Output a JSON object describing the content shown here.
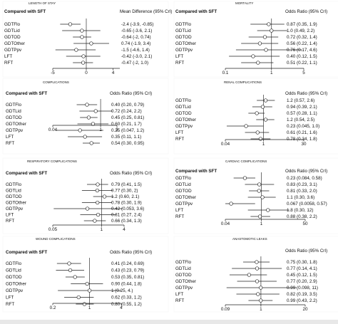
{
  "figure": {
    "panels": [
      {
        "id": "los",
        "title": "LENGTH OF STAY",
        "header_left": "Compared with SFT",
        "header_right": "Mean Difference (95% CrI)",
        "axis": {
          "scale": "linear",
          "min": -5,
          "max": 5,
          "ref": 0
        },
        "ticks": [
          "-5",
          "0",
          "4"
        ],
        "tick_values": [
          -5,
          0,
          4
        ],
        "rows": [
          {
            "label": "GDTFlo",
            "est": -2.4,
            "lo": -3.9,
            "hi": -0.85,
            "text": "-2.4 (-3.9, -0.85)"
          },
          {
            "label": "GDTLid",
            "est": -0.65,
            "lo": -3.6,
            "hi": 2.1,
            "text": "-0.65 (-3.6, 2.1)"
          },
          {
            "label": "GDTOD",
            "est": -0.64,
            "lo": -2,
            "hi": 0.74,
            "text": "-0.64 (-2, 0.74)"
          },
          {
            "label": "GDTOther",
            "est": 0.74,
            "lo": -1.9,
            "hi": 3.4,
            "text": "0.74 (-1.9, 3.4)"
          },
          {
            "label": "GDTPpv",
            "est": -1.5,
            "lo": -4.6,
            "hi": 1.4,
            "text": "-1.5 (-4.6, 1.4)"
          },
          {
            "label": "LFT",
            "est": -0.42,
            "lo": -3,
            "hi": 2.1,
            "text": "-0.42 (-3.0, 2.1)"
          },
          {
            "label": "RFT",
            "est": -0.47,
            "lo": -2,
            "hi": 1,
            "text": "-0.47 (-2, 1.0)"
          }
        ]
      },
      {
        "id": "mortality",
        "title": "MORTALITY",
        "header_left": "Compared with SFT",
        "header_right": "Odds Ratio (95% CrI)",
        "axis": {
          "scale": "log",
          "min": 0.1,
          "max": 5,
          "ref": 1
        },
        "ticks": [
          "0.1",
          "1",
          "5"
        ],
        "tick_values": [
          0.1,
          1,
          5
        ],
        "rows": [
          {
            "label": "GDTFlo",
            "est": 0.87,
            "lo": 0.35,
            "hi": 1.9,
            "text": "0.87 (0.35, 1.9)"
          },
          {
            "label": "GDTLid",
            "est": 1,
            "lo": 0.49,
            "hi": 2.2,
            "text": "1.0 (0.49, 2.2)"
          },
          {
            "label": "GDTOD",
            "est": 0.72,
            "lo": 0.32,
            "hi": 1.4,
            "text": "0.72 (0.32, 1.4)"
          },
          {
            "label": "GDTOther",
            "est": 0.56,
            "lo": 0.22,
            "hi": 1.4,
            "text": "0.56 (0.22, 1.4)"
          },
          {
            "label": "GDTPpv",
            "est": 0.76,
            "lo": 0.17,
            "hi": 4.6,
            "text": "0.76 (0.17, 4.6)"
          },
          {
            "label": "LFT",
            "est": 0.4,
            "lo": 0.12,
            "hi": 1.5,
            "text": "0.40 (0.12, 1.5)"
          },
          {
            "label": "RFT",
            "est": 0.51,
            "lo": 0.22,
            "hi": 1.1,
            "text": "0.51 (0.22, 1.1)"
          }
        ]
      },
      {
        "id": "complications",
        "title": "COMPLICATIONS",
        "header_left": "Compared with SFT",
        "header_right": "Odds Ratio (95% CrI)",
        "axis": {
          "scale": "log",
          "min": 0.04,
          "max": 3,
          "ref": 1
        },
        "ticks": [
          "0.04",
          "1",
          "3"
        ],
        "tick_values": [
          0.04,
          1,
          3
        ],
        "rows": [
          {
            "label": "GDTFlo",
            "est": 0.4,
            "lo": 0.2,
            "hi": 0.79,
            "text": "0.40 (0.20, 0.79)"
          },
          {
            "label": "GDTLid",
            "est": 0.72,
            "lo": 0.24,
            "hi": 2.2,
            "text": "0.72 (0.24, 2.2)"
          },
          {
            "label": "GDTOD",
            "est": 0.45,
            "lo": 0.25,
            "hi": 0.81,
            "text": "0.45 (0.25, 0.81)"
          },
          {
            "label": "GDTOther",
            "est": 0.6,
            "lo": 0.21,
            "hi": 1.7,
            "text": "0.60 (0.21, 1.7)"
          },
          {
            "label": "GDTPpv",
            "est": 0.25,
            "lo": 0.047,
            "hi": 1.2,
            "text": "0.25 (0.047, 1.2)"
          },
          {
            "label": "LFT",
            "est": 0.35,
            "lo": 0.11,
            "hi": 1.1,
            "text": "0.35 (0.11, 1.1)"
          },
          {
            "label": "RFT",
            "est": 0.54,
            "lo": 0.3,
            "hi": 0.95,
            "text": "0.54 (0.30, 0.95)"
          }
        ]
      },
      {
        "id": "renal",
        "title": "RENAL COMPLICATIONS",
        "header_left": "",
        "header_right": "Odds Ratio (95% CrI)",
        "axis": {
          "scale": "log",
          "min": 0.04,
          "max": 30,
          "ref": 1
        },
        "ticks": [
          "0.04",
          "1",
          "30"
        ],
        "tick_values": [
          0.04,
          1,
          30
        ],
        "rows": [
          {
            "label": "GDTFlo",
            "est": 1.2,
            "lo": 0.57,
            "hi": 2.6,
            "text": "1.2 (0.57, 2.6)"
          },
          {
            "label": "GDTLid",
            "est": 0.94,
            "lo": 0.39,
            "hi": 2.1,
            "text": "0.94 (0.39, 2.1)"
          },
          {
            "label": "GDTOD",
            "est": 0.57,
            "lo": 0.28,
            "hi": 1.1,
            "text": "0.57 (0.28, 1.1)"
          },
          {
            "label": "GDTOther",
            "est": 1.2,
            "lo": 0.54,
            "hi": 2.5,
            "text": "1.2 (0.54, 2.5)"
          },
          {
            "label": "GDTPpv",
            "est": 0.23,
            "lo": 0.045,
            "hi": 1,
            "text": "0.23 (0.045, 1.0)"
          },
          {
            "label": "LFT",
            "est": 0.61,
            "lo": 0.21,
            "hi": 1.6,
            "text": "0.61 (0.21, 1.6)"
          },
          {
            "label": "RFT",
            "est": 0.78,
            "lo": 0.34,
            "hi": 1.8,
            "text": "0.78 (0.34, 1.8)"
          }
        ]
      },
      {
        "id": "respiratory",
        "title": "RESPIRATORY COMPLICATIONS",
        "header_left": "Compared with SFT",
        "header_right": "Odds Ratio (95% CrI)",
        "axis": {
          "scale": "log",
          "min": 0.05,
          "max": 4,
          "ref": 1
        },
        "ticks": [
          "0.05",
          "1",
          "4"
        ],
        "tick_values": [
          0.05,
          1,
          4
        ],
        "rows": [
          {
            "label": "GDTFlo",
            "est": 0.79,
            "lo": 0.41,
            "hi": 1.5,
            "text": "0.79 (0.41, 1.5)"
          },
          {
            "label": "GDTLid",
            "est": 0.77,
            "lo": 0.3,
            "hi": 2,
            "text": "0.77 (0.30, 2)"
          },
          {
            "label": "GDTOD",
            "est": 1.2,
            "lo": 0.6,
            "hi": 2.1,
            "text": "1.2 (0.60, 2.1)"
          },
          {
            "label": "GDTOther",
            "est": 0.78,
            "lo": 0.3,
            "hi": 1.9,
            "text": "0.78 (0.30, 1.9)"
          },
          {
            "label": "GDTPpv",
            "est": 0.42,
            "lo": 0.053,
            "hi": 3.6,
            "text": "0.42 (0.053, 3.6)"
          },
          {
            "label": "LFT",
            "est": 0.81,
            "lo": 0.27,
            "hi": 2.4,
            "text": "0.81 (0.27, 2.4)"
          },
          {
            "label": "RFT",
            "est": 0.66,
            "lo": 0.34,
            "hi": 1.3,
            "text": "0.66 (0.34, 1.3)"
          }
        ]
      },
      {
        "id": "cardiac",
        "title": "CARDIAC COMPLICATIONS",
        "header_left": "Compared with SFT",
        "header_right": "Odds Ratio (95% CrI)",
        "axis": {
          "scale": "log",
          "min": 0.04,
          "max": 50,
          "ref": 1
        },
        "ticks": [
          "0.04",
          "1",
          "50"
        ],
        "tick_values": [
          0.04,
          1,
          50
        ],
        "rows": [
          {
            "label": "GDTFlo",
            "est": 0.23,
            "lo": 0.084,
            "hi": 0.58,
            "text": "0.23 (0.084, 0.58)"
          },
          {
            "label": "GDTLid",
            "est": 0.83,
            "lo": 0.23,
            "hi": 3.1,
            "text": "0.83 (0.23, 3.1)"
          },
          {
            "label": "GDTOD",
            "est": 0.81,
            "lo": 0.33,
            "hi": 2,
            "text": "0.81 (0.33, 2.0)"
          },
          {
            "label": "GDTOther",
            "est": 1.1,
            "lo": 0.3,
            "hi": 3.6,
            "text": "1.1 (0.30, 3.6)"
          },
          {
            "label": "GDTPpv",
            "est": 0.067,
            "lo": 0.0058,
            "hi": 0.57,
            "text": "0.067 (0.0058, 0.57)"
          },
          {
            "label": "LFT",
            "est": 1.8,
            "lo": 0.3,
            "hi": 12,
            "text": "1.8 (0.30, 12)"
          },
          {
            "label": "RFT",
            "est": 0.88,
            "lo": 0.38,
            "hi": 2.2,
            "text": "0.88 (0.38, 2.2)"
          }
        ]
      },
      {
        "id": "wound",
        "title": "WOUND COMPLICATIONS",
        "header_left": "Compared with SFT",
        "header_right": "Odds Ratio (95% CrI)",
        "axis": {
          "scale": "log",
          "min": 0.2,
          "max": 4,
          "ref": 1
        },
        "ticks": [
          "0.2",
          "1",
          "4"
        ],
        "tick_values": [
          0.2,
          1,
          4
        ],
        "rows": [
          {
            "label": "GDTFlo",
            "est": 0.41,
            "lo": 0.24,
            "hi": 0.69,
            "text": "0.41 (0.24, 0.69)"
          },
          {
            "label": "GDTLid",
            "est": 0.43,
            "lo": 0.23,
            "hi": 0.79,
            "text": "0.43 (0.23, 0.79)"
          },
          {
            "label": "GDTOD",
            "est": 0.53,
            "lo": 0.35,
            "hi": 0.81,
            "text": "0.53 (0.35, 0.81)"
          },
          {
            "label": "GDTOther",
            "est": 0.9,
            "lo": 0.44,
            "hi": 1.8,
            "text": "0.90 (0.44, 1.8)"
          },
          {
            "label": "GDTPpv",
            "est": 1,
            "lo": 0.25,
            "hi": 4,
            "text": "1 (0.25, 4.)"
          },
          {
            "label": "LFT",
            "est": 0.62,
            "lo": 0.33,
            "hi": 1.2,
            "text": "0.62 (0.33, 1.2)"
          },
          {
            "label": "RFT",
            "est": 0.8,
            "lo": 0.55,
            "hi": 1.2,
            "text": "0.80 (0.55, 1.2)"
          }
        ]
      },
      {
        "id": "anastomotic",
        "title": "ANASTOMOTIC LEAKS",
        "header_left": "",
        "header_right": "Odds Ratio (95% CrI)",
        "axis": {
          "scale": "log",
          "min": 0.09,
          "max": 20,
          "ref": 1
        },
        "ticks": [
          "0.09",
          "1",
          "20"
        ],
        "tick_values": [
          0.09,
          1,
          20
        ],
        "rows": [
          {
            "label": "GDTFlo",
            "est": 0.75,
            "lo": 0.3,
            "hi": 1.8,
            "text": "0.75 (0.30, 1.8)"
          },
          {
            "label": "GDTLid",
            "est": 0.77,
            "lo": 0.14,
            "hi": 4.1,
            "text": "0.77 (0.14, 4.1)"
          },
          {
            "label": "GDTOD",
            "est": 0.45,
            "lo": 0.12,
            "hi": 1.5,
            "text": "0.45 (0.12, 1.5)"
          },
          {
            "label": "GDTOther",
            "est": 0.77,
            "lo": 0.2,
            "hi": 2.9,
            "text": "0.77 (0.20, 2.9)"
          },
          {
            "label": "GDTPpv",
            "est": 0.99,
            "lo": 0.098,
            "hi": 11,
            "text": "0.99 (0.098, 11)"
          },
          {
            "label": "LFT",
            "est": 0.82,
            "lo": 0.19,
            "hi": 3.5,
            "text": "0.82 (0.19, 3.5)"
          },
          {
            "label": "RFT",
            "est": 0.99,
            "lo": 0.43,
            "hi": 2.2,
            "text": "0.99 (0.43, 2.2)"
          }
        ]
      }
    ]
  },
  "chart_data": [
    {
      "type": "forest",
      "title": "LENGTH OF STAY",
      "categories": [
        "GDTFlo",
        "GDTLid",
        "GDTOD",
        "GDTOther",
        "GDTPpv",
        "LFT",
        "RFT"
      ],
      "values": [
        -2.4,
        -0.65,
        -0.64,
        0.74,
        -1.5,
        -0.42,
        -0.47
      ],
      "lower": [
        -3.9,
        -3.6,
        -2,
        -1.9,
        -4.6,
        -3,
        -2
      ],
      "upper": [
        -0.85,
        2.1,
        0.74,
        3.4,
        1.4,
        2.1,
        1
      ],
      "xlabel": "Mean Difference (95% CrI)",
      "xticks": [
        -5,
        0,
        4
      ],
      "reference": 0
    },
    {
      "type": "forest",
      "title": "MORTALITY",
      "categories": [
        "GDTFlo",
        "GDTLid",
        "GDTOD",
        "GDTOther",
        "GDTPpv",
        "LFT",
        "RFT"
      ],
      "values": [
        0.87,
        1,
        0.72,
        0.56,
        0.76,
        0.4,
        0.51
      ],
      "lower": [
        0.35,
        0.49,
        0.32,
        0.22,
        0.17,
        0.12,
        0.22
      ],
      "upper": [
        1.9,
        2.2,
        1.4,
        1.4,
        4.6,
        1.5,
        1.1
      ],
      "xlabel": "Odds Ratio (95% CrI)",
      "xscale": "log",
      "xticks": [
        0.1,
        1,
        5
      ],
      "reference": 1
    },
    {
      "type": "forest",
      "title": "COMPLICATIONS",
      "categories": [
        "GDTFlo",
        "GDTLid",
        "GDTOD",
        "GDTOther",
        "GDTPpv",
        "LFT",
        "RFT"
      ],
      "values": [
        0.4,
        0.72,
        0.45,
        0.6,
        0.25,
        0.35,
        0.54
      ],
      "lower": [
        0.2,
        0.24,
        0.25,
        0.21,
        0.047,
        0.11,
        0.3
      ],
      "upper": [
        0.79,
        2.2,
        0.81,
        1.7,
        1.2,
        1.1,
        0.95
      ],
      "xlabel": "Odds Ratio (95% CrI)",
      "xscale": "log",
      "xticks": [
        0.04,
        1,
        3
      ],
      "reference": 1
    },
    {
      "type": "forest",
      "title": "RENAL COMPLICATIONS",
      "categories": [
        "GDTFlo",
        "GDTLid",
        "GDTOD",
        "GDTOther",
        "GDTPpv",
        "LFT",
        "RFT"
      ],
      "values": [
        1.2,
        0.94,
        0.57,
        1.2,
        0.23,
        0.61,
        0.78
      ],
      "lower": [
        0.57,
        0.39,
        0.28,
        0.54,
        0.045,
        0.21,
        0.34
      ],
      "upper": [
        2.6,
        2.1,
        1.1,
        2.5,
        1,
        1.6,
        1.8
      ],
      "xlabel": "Odds Ratio (95% CrI)",
      "xscale": "log",
      "xticks": [
        0.04,
        1,
        30
      ],
      "reference": 1
    },
    {
      "type": "forest",
      "title": "RESPIRATORY COMPLICATIONS",
      "categories": [
        "GDTFlo",
        "GDTLid",
        "GDTOD",
        "GDTOther",
        "GDTPpv",
        "LFT",
        "RFT"
      ],
      "values": [
        0.79,
        0.77,
        1.2,
        0.78,
        0.42,
        0.81,
        0.66
      ],
      "lower": [
        0.41,
        0.3,
        0.6,
        0.3,
        0.053,
        0.27,
        0.34
      ],
      "upper": [
        1.5,
        2,
        2.1,
        1.9,
        3.6,
        2.4,
        1.3
      ],
      "xlabel": "Odds Ratio (95% CrI)",
      "xscale": "log",
      "xticks": [
        0.05,
        1,
        4
      ],
      "reference": 1
    },
    {
      "type": "forest",
      "title": "CARDIAC COMPLICATIONS",
      "categories": [
        "GDTFlo",
        "GDTLid",
        "GDTOD",
        "GDTOther",
        "GDTPpv",
        "LFT",
        "RFT"
      ],
      "values": [
        0.23,
        0.83,
        0.81,
        1.1,
        0.067,
        1.8,
        0.88
      ],
      "lower": [
        0.084,
        0.23,
        0.33,
        0.3,
        0.0058,
        0.3,
        0.38
      ],
      "upper": [
        0.58,
        3.1,
        2,
        3.6,
        0.57,
        12,
        2.2
      ],
      "xlabel": "Odds Ratio (95% CrI)",
      "xscale": "log",
      "xticks": [
        0.04,
        1,
        50
      ],
      "reference": 1
    },
    {
      "type": "forest",
      "title": "WOUND COMPLICATIONS",
      "categories": [
        "GDTFlo",
        "GDTLid",
        "GDTOD",
        "GDTOther",
        "GDTPpv",
        "LFT",
        "RFT"
      ],
      "values": [
        0.41,
        0.43,
        0.53,
        0.9,
        1,
        0.62,
        0.8
      ],
      "lower": [
        0.24,
        0.23,
        0.35,
        0.44,
        0.25,
        0.33,
        0.55
      ],
      "upper": [
        0.69,
        0.79,
        0.81,
        1.8,
        4,
        1.2,
        1.2
      ],
      "xlabel": "Odds Ratio (95% CrI)",
      "xscale": "log",
      "xticks": [
        0.2,
        1,
        4
      ],
      "reference": 1
    },
    {
      "type": "forest",
      "title": "ANASTOMOTIC LEAKS",
      "categories": [
        "GDTFlo",
        "GDTLid",
        "GDTOD",
        "GDTOther",
        "GDTPpv",
        "LFT",
        "RFT"
      ],
      "values": [
        0.75,
        0.77,
        0.45,
        0.77,
        0.99,
        0.82,
        0.99
      ],
      "lower": [
        0.3,
        0.14,
        0.12,
        0.2,
        0.098,
        0.19,
        0.43
      ],
      "upper": [
        1.8,
        4.1,
        1.5,
        2.9,
        11,
        3.5,
        2.2
      ],
      "xlabel": "Odds Ratio (95% CrI)",
      "xscale": "log",
      "xticks": [
        0.09,
        1,
        20
      ],
      "reference": 1
    }
  ]
}
